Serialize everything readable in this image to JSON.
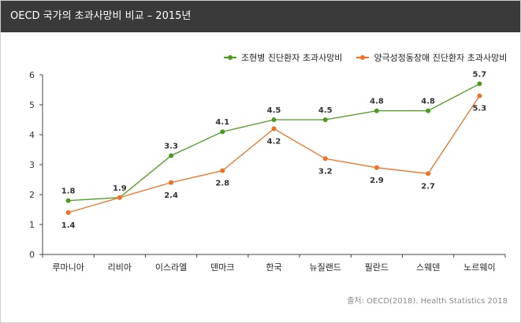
{
  "header": {
    "title": "OECD 국가의 초과사망비 비교 – 2015년"
  },
  "source": "출처: OECD(2018). Health Statistics 2018",
  "colors": {
    "series1": "#4b9a1f",
    "series2": "#f07024",
    "axis": "#444444",
    "grid": "#e6e6e6",
    "titlebar": "#3a3a3a"
  },
  "chart_data": {
    "type": "line",
    "categories": [
      "루마니아",
      "리비아",
      "이스라엘",
      "덴마크",
      "한국",
      "뉴질랜드",
      "필란드",
      "스웨덴",
      "노르웨이"
    ],
    "ylim": [
      0,
      6
    ],
    "yticks": [
      "0",
      "1",
      "2",
      "3",
      "4",
      "5",
      "6"
    ],
    "grid": false,
    "legend_position": "top-right",
    "series": [
      {
        "name": "조현병 진단환자 초과사망비",
        "color": "#4b9a1f",
        "values": [
          1.8,
          1.9,
          3.3,
          4.1,
          4.5,
          4.5,
          4.8,
          4.8,
          5.7
        ],
        "labels": [
          "1.8",
          "1.9",
          "3.3",
          "4.1",
          "4.5",
          "4.5",
          "4.8",
          "4.8",
          "5.7"
        ],
        "label_position": "above"
      },
      {
        "name": "양극성정동장애 진단환자 초과사망비",
        "color": "#f07024",
        "values": [
          1.4,
          1.9,
          2.4,
          2.8,
          4.2,
          3.2,
          2.9,
          2.7,
          5.3
        ],
        "labels": [
          "1.4",
          "",
          "2.4",
          "2.8",
          "4.2",
          "3.2",
          "2.9",
          "2.7",
          "5.3"
        ],
        "label_position": "below"
      }
    ]
  }
}
